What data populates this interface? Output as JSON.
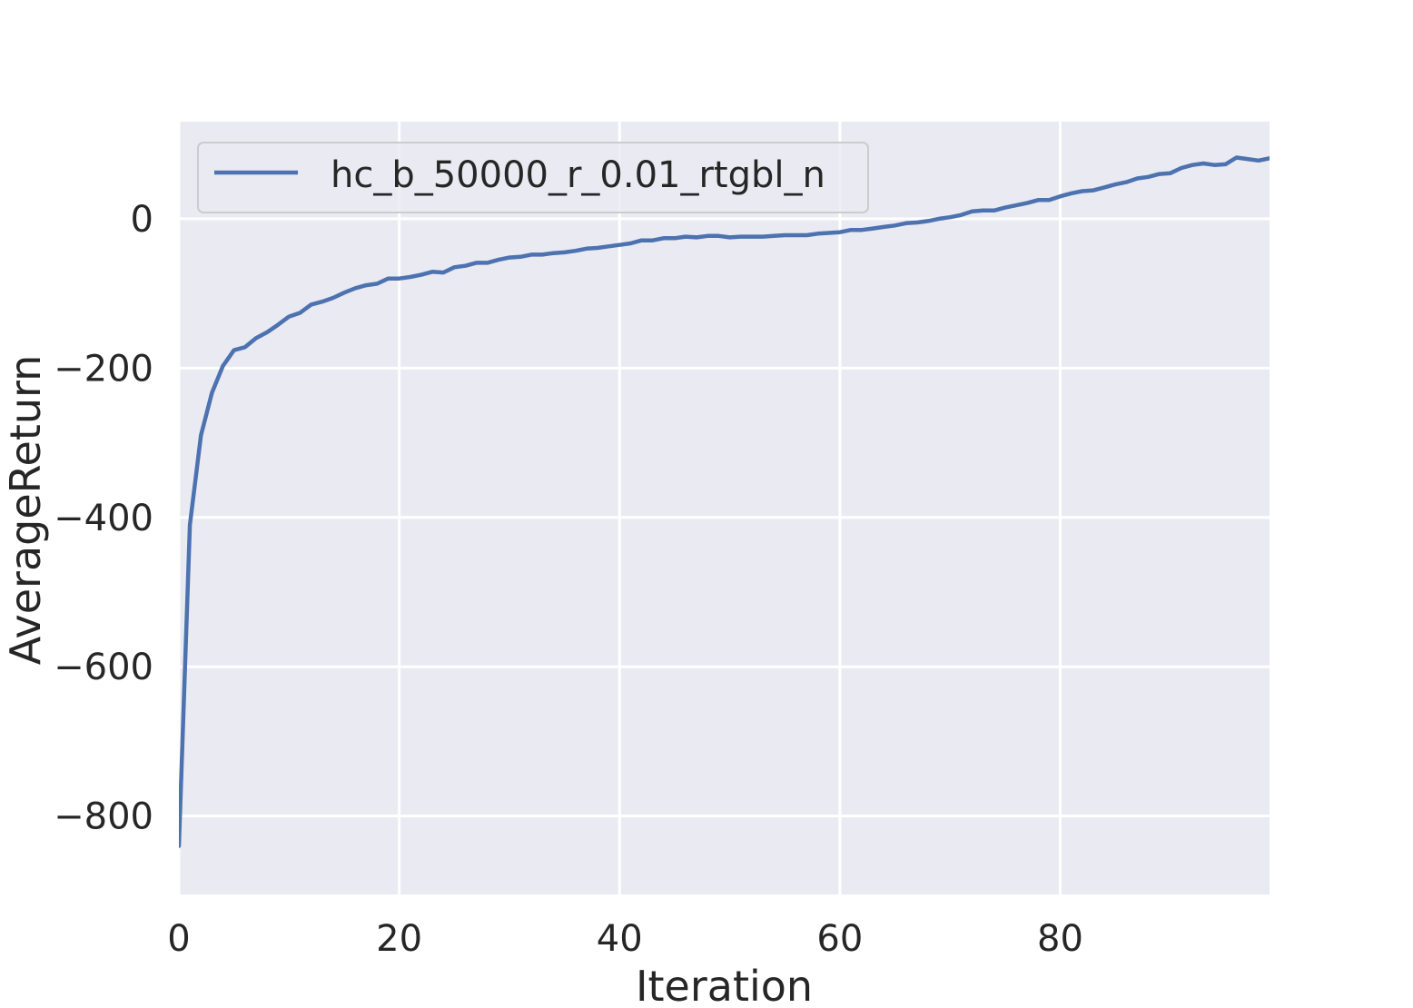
{
  "chart_data": {
    "type": "line",
    "xlabel": "Iteration",
    "ylabel": "AverageReturn",
    "xlim": [
      0,
      99
    ],
    "ylim": [
      -905,
      130
    ],
    "xticks": [
      0,
      20,
      40,
      60,
      80
    ],
    "xtick_labels": [
      "0",
      "20",
      "40",
      "60",
      "80"
    ],
    "yticks": [
      0,
      -200,
      -400,
      -600,
      -800
    ],
    "ytick_labels": [
      "0",
      "−200",
      "−400",
      "−600",
      "−800"
    ],
    "grid": true,
    "legend_position": "upper-left",
    "background_color": "#eaeaf2",
    "grid_color": "#ffffff",
    "series": [
      {
        "name": "hc_b_50000_r_0.01_rtgbl_n",
        "color": "#4c72b0",
        "x": [
          0,
          1,
          2,
          3,
          4,
          5,
          6,
          7,
          8,
          9,
          10,
          11,
          12,
          13,
          14,
          15,
          16,
          17,
          18,
          19,
          20,
          21,
          22,
          23,
          24,
          25,
          26,
          27,
          28,
          29,
          30,
          31,
          32,
          33,
          34,
          35,
          36,
          37,
          38,
          39,
          40,
          41,
          42,
          43,
          44,
          45,
          46,
          47,
          48,
          49,
          50,
          51,
          52,
          53,
          54,
          55,
          56,
          57,
          58,
          59,
          60,
          61,
          62,
          63,
          64,
          65,
          66,
          67,
          68,
          69,
          70,
          71,
          72,
          73,
          74,
          75,
          76,
          77,
          78,
          79,
          80,
          81,
          82,
          83,
          84,
          85,
          86,
          87,
          88,
          89,
          90,
          91,
          92,
          93,
          94,
          95,
          96,
          97,
          98,
          99
        ],
        "y": [
          -840,
          -410,
          -290,
          -233,
          -197,
          -176,
          -172,
          -160,
          -152,
          -142,
          -131,
          -126,
          -115,
          -111,
          -106,
          -99,
          -93,
          -89,
          -87,
          -80,
          -80,
          -78,
          -75,
          -71,
          -72,
          -65,
          -63,
          -59,
          -59,
          -55,
          -52,
          -51,
          -48,
          -48,
          -46,
          -45,
          -43,
          -40,
          -39,
          -37,
          -35,
          -33,
          -29,
          -29,
          -26,
          -26,
          -24,
          -25,
          -23,
          -23,
          -25,
          -24,
          -24,
          -24,
          -23,
          -22,
          -22,
          -22,
          -20,
          -19,
          -18,
          -15,
          -15,
          -13,
          -11,
          -9,
          -6,
          -5,
          -3,
          0,
          2,
          5,
          10,
          11,
          11,
          15,
          18,
          21,
          25,
          25,
          30,
          34,
          37,
          38,
          42,
          46,
          49,
          54,
          56,
          60,
          61,
          68,
          72,
          74,
          72,
          73,
          82,
          80,
          78,
          81
        ]
      }
    ]
  }
}
